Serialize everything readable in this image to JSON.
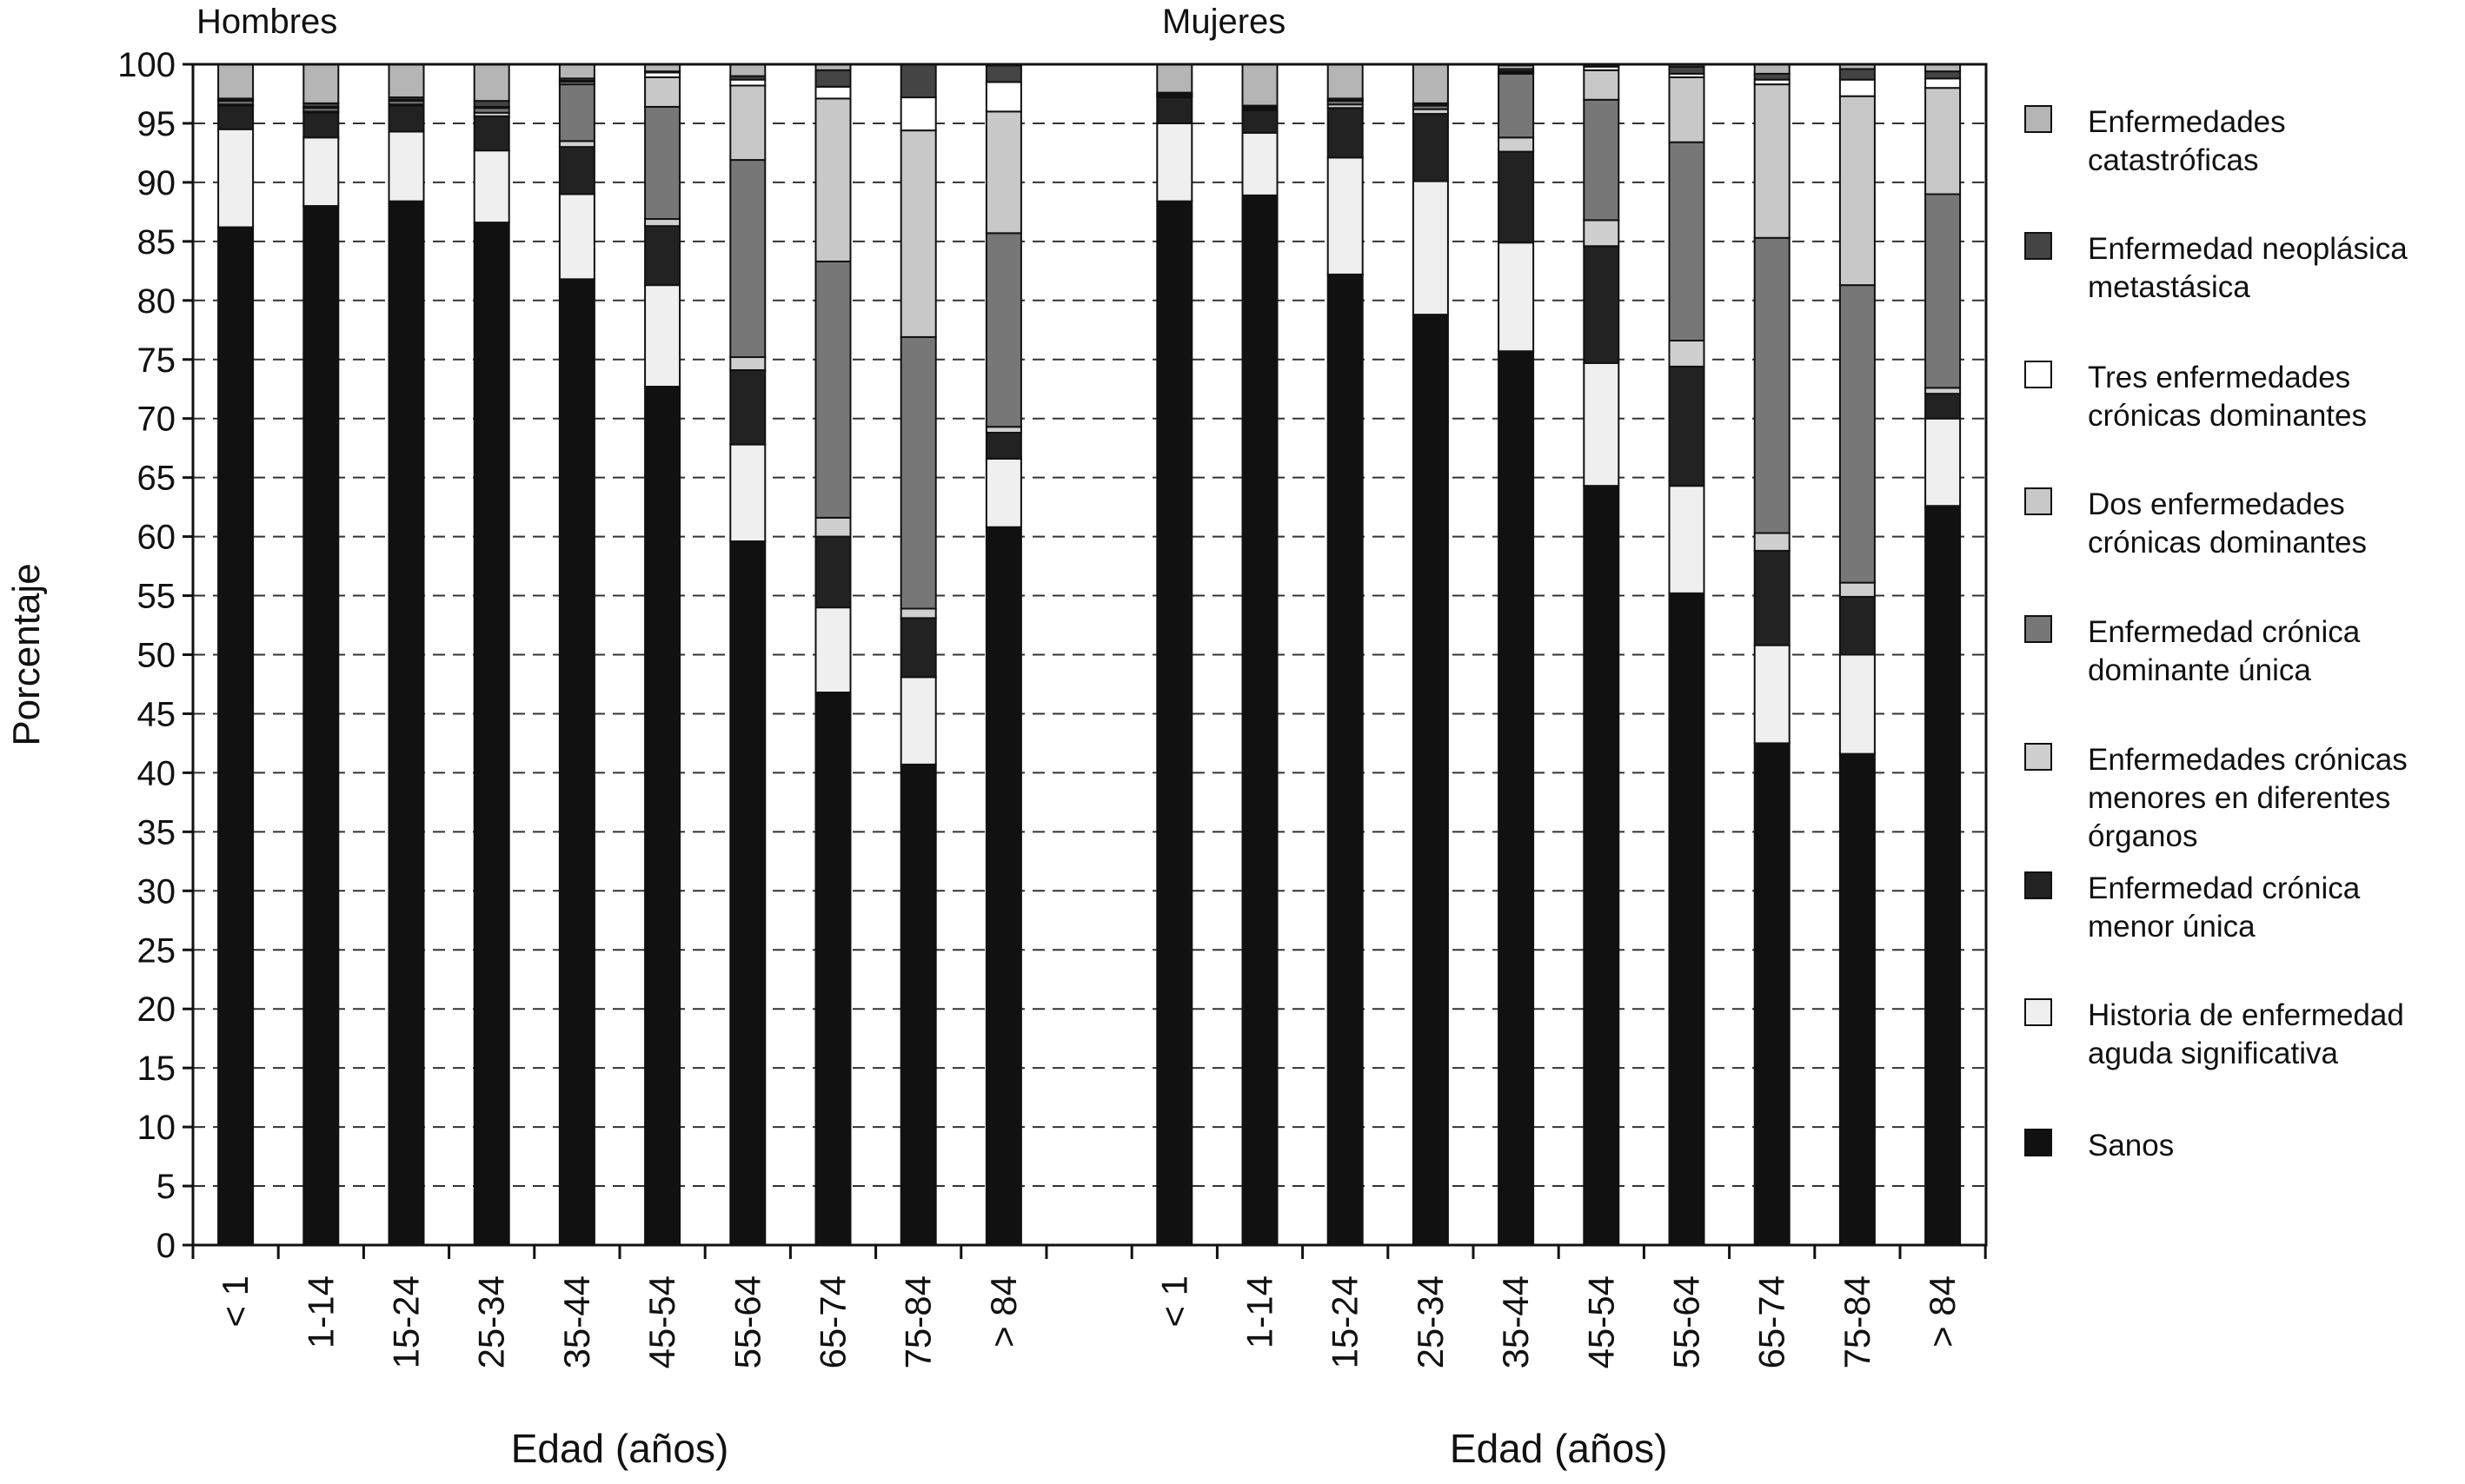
{
  "chart_data": {
    "type": "bar",
    "stacked": true,
    "panels": [
      {
        "title": "Hombres",
        "xlabel": "Edad (años)"
      },
      {
        "title": "Mujeres",
        "xlabel": "Edad (años)"
      }
    ],
    "ylabel": "Porcentaje",
    "ylim": [
      0,
      100
    ],
    "yticks": [
      0,
      5,
      10,
      15,
      20,
      25,
      30,
      35,
      40,
      45,
      50,
      55,
      60,
      65,
      70,
      75,
      80,
      85,
      90,
      95,
      100
    ],
    "grid": "horizontal dashed",
    "legend_position": "right",
    "categories": [
      "< 1",
      "1-14",
      "15-24",
      "25-34",
      "35-44",
      "45-54",
      "55-64",
      "65-74",
      "75-84",
      "> 84"
    ],
    "series": [
      {
        "name": "Sanos",
        "color": "#111111",
        "hombres": [
          86.2,
          88.0,
          88.4,
          86.6,
          81.8,
          72.7,
          59.6,
          46.8,
          40.7,
          60.8
        ],
        "mujeres": [
          88.4,
          88.9,
          82.2,
          78.8,
          75.7,
          64.3,
          55.2,
          42.5,
          41.6,
          62.6
        ]
      },
      {
        "name": "Historia de enfermedad aguda significativa",
        "color": "#efefef",
        "hombres": [
          8.3,
          5.8,
          5.9,
          6.1,
          7.2,
          8.6,
          8.2,
          7.2,
          7.4,
          5.8
        ],
        "mujeres": [
          6.6,
          5.3,
          9.9,
          11.3,
          9.2,
          10.4,
          9.1,
          8.3,
          8.4,
          7.4
        ]
      },
      {
        "name": "Enfermedad crónica menor única",
        "color": "#222222",
        "hombres": [
          2.0,
          2.1,
          2.2,
          2.9,
          4.0,
          5.0,
          6.3,
          6.0,
          5.0,
          2.2
        ],
        "mujeres": [
          2.2,
          1.9,
          4.2,
          5.7,
          7.7,
          9.9,
          10.1,
          8.0,
          4.9,
          2.1
        ]
      },
      {
        "name": "Enfermedades crónicas menores en diferentes órganos",
        "color": "#cfcfcf",
        "hombres": [
          0.1,
          0.1,
          0.1,
          0.3,
          0.5,
          0.6,
          1.1,
          1.6,
          0.8,
          0.5
        ],
        "mujeres": [
          0.1,
          0.1,
          0.3,
          0.4,
          1.2,
          2.2,
          2.2,
          1.5,
          1.2,
          0.5
        ]
      },
      {
        "name": "Enfermedad crónica dominante única",
        "color": "#777777",
        "hombres": [
          0.3,
          0.3,
          0.3,
          0.4,
          4.8,
          9.5,
          16.7,
          21.7,
          23.0,
          16.4
        ],
        "mujeres": [
          0.1,
          0.1,
          0.3,
          0.3,
          5.4,
          10.2,
          16.8,
          25.0,
          25.2,
          16.4
        ]
      },
      {
        "name": "Dos enfermedades crónicas dominantes",
        "color": "#c8c8c8",
        "hombres": [
          0.1,
          0.1,
          0.1,
          0.1,
          0.2,
          2.5,
          6.3,
          13.8,
          17.5,
          10.3
        ],
        "mujeres": [
          0.1,
          0.1,
          0.1,
          0.1,
          0.1,
          2.5,
          5.5,
          13.0,
          16.0,
          9.0
        ]
      },
      {
        "name": "Tres enfermedades crónicas dominantes",
        "color": "#ffffff",
        "hombres": [
          0.0,
          0.0,
          0.0,
          0.0,
          0.1,
          0.4,
          0.5,
          1.0,
          2.8,
          2.5
        ],
        "mujeres": [
          0.0,
          0.0,
          0.0,
          0.0,
          0.1,
          0.3,
          0.3,
          0.4,
          1.4,
          0.8
        ]
      },
      {
        "name": "Enfermedad neoplásica metastásica",
        "color": "#444444",
        "hombres": [
          0.1,
          0.3,
          0.2,
          0.5,
          0.2,
          0.1,
          0.3,
          1.4,
          2.8,
          1.4
        ],
        "mujeres": [
          0.1,
          0.1,
          0.1,
          0.1,
          0.2,
          0.1,
          0.6,
          0.5,
          0.9,
          0.6
        ]
      },
      {
        "name": "Enfermedades catastróficas",
        "color": "#b5b5b5",
        "hombres": [
          2.9,
          3.3,
          2.8,
          3.1,
          1.2,
          0.6,
          1.0,
          0.5,
          0.0,
          0.1
        ],
        "mujeres": [
          2.4,
          3.5,
          2.9,
          3.3,
          0.3,
          0.0,
          0.2,
          0.8,
          0.4,
          0.6
        ]
      }
    ],
    "legend_labels": [
      [
        "Enfermedades",
        "catastróficas"
      ],
      [
        "Enfermedad neoplásica",
        "metastásica"
      ],
      [
        "Tres enfermedades",
        "crónicas dominantes"
      ],
      [
        "Dos enfermedades",
        "crónicas dominantes"
      ],
      [
        "Enfermedad crónica",
        "dominante única"
      ],
      [
        "Enfermedades crónicas",
        "menores en diferentes",
        "órganos"
      ],
      [
        "Enfermedad crónica",
        "menor única"
      ],
      [
        "Historia de enfermedad",
        "aguda significativa"
      ],
      [
        "Sanos"
      ]
    ]
  }
}
